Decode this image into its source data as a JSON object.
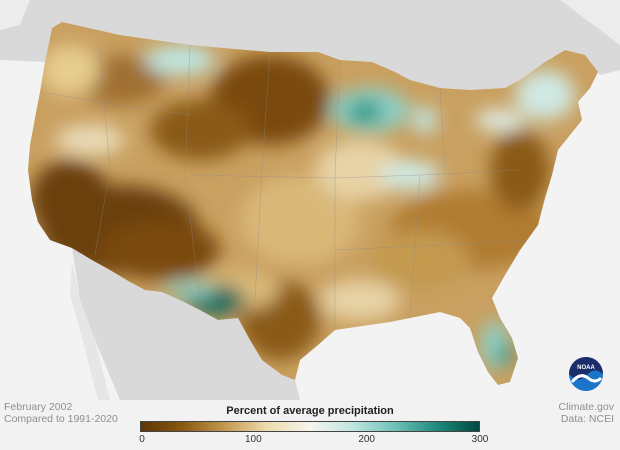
{
  "map": {
    "legend": {
      "title": "Percent of average precipitation",
      "ticks": [
        "0",
        "100",
        "200",
        "300"
      ],
      "tick_values": [
        0,
        100,
        200,
        300
      ],
      "range": [
        0,
        300
      ],
      "colors": [
        "#5c3503",
        "#8a5a12",
        "#c49a4f",
        "#eedcae",
        "#f7f4ee",
        "#bfe5e1",
        "#6fc2b8",
        "#1f8a7d",
        "#00493f"
      ]
    },
    "caption_left": {
      "line1": "February 2002",
      "line2": "Compared to 1991-2020"
    },
    "caption_right": {
      "line1": "Climate.gov",
      "line2": "Data: NCEI"
    },
    "logo": {
      "icon": "noaa-logo-icon",
      "text": "NOAA"
    },
    "colors": {
      "background": "#f2f2f2",
      "land_outside": "#d7d7d7",
      "water": "#f3f3f3",
      "very_dry": "#6b3f08",
      "dry": "#b07c30",
      "near_normal": "#f5efe2",
      "wet": "#8ed0c6",
      "very_wet": "#0d6b5f"
    }
  }
}
